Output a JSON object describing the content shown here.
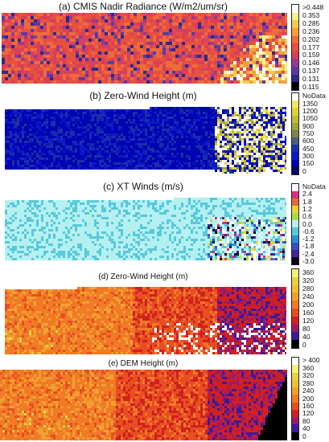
{
  "chart_data": [
    {
      "type": "heatmap",
      "title": "(a) CMIS Nadir Radiance (W/m2/um/sr)",
      "legend": ">0.448 0.353 0.285 0.236 0.202 0.177 0.159 0.146 0.137 0.131 0.115",
      "colorbar": [
        ">0.448",
        "0.353",
        "0.285",
        "0.236",
        "0.202",
        "0.177",
        "0.159",
        "0.146",
        "0.137",
        "0.131",
        "0.115"
      ],
      "colors": [
        "#ffffff",
        "#f5f08a",
        "#f3c850",
        "#f2a03c",
        "#ee6b3a",
        "#e8503e",
        "#d8405a",
        "#9a3a8c",
        "#5a3aa8",
        "#2d2a8a",
        "#000000"
      ],
      "legend_placement": "right"
    },
    {
      "type": "heatmap",
      "title": "(b) Zero-Wind Height (m)",
      "legend": "NoData 1350 1200 1050 900 750 600 450 300 150 0",
      "colorbar": [
        "NoData",
        "1350",
        "1200",
        "1050",
        "900",
        "750",
        "600",
        "450",
        "300",
        "150",
        "0"
      ],
      "colors": [
        "#ffffff",
        "#f3e46a",
        "#ddd23c",
        "#c3b93a",
        "#9fa040",
        "#7c8448",
        "#4a5f80",
        "#1d2fa8",
        "#0a18c8",
        "#0004b0",
        "#000060"
      ],
      "legend_placement": "right"
    },
    {
      "type": "heatmap",
      "title": "(c) XT Winds (m/s)",
      "legend": "NoData 2.4 1.8 1.2 0.6 0.0 -0.6 -1.2 -1.8 -2.4 -3.0",
      "colorbar": [
        "NoData",
        "2.4",
        "1.8",
        "1.2",
        "0.6",
        "0.0",
        "-0.6",
        "-1.2",
        "-1.8",
        "-2.4",
        "-3.0"
      ],
      "colors": [
        "#ffffff",
        "#d8307a",
        "#e36a3a",
        "#ecd03a",
        "#a8dc48",
        "#b4f0f0",
        "#58c8dc",
        "#2890d8",
        "#3a50c0",
        "#46209a",
        "#100020"
      ],
      "legend_placement": "right"
    },
    {
      "type": "heatmap",
      "title": "(d) Zero-Wind Height (m)",
      "legend": "360 320 280 240 200 160 120 80 40 0",
      "colorbar": [
        "360",
        "320",
        "280",
        "240",
        "200",
        "160",
        "120",
        "80",
        "40",
        "0"
      ],
      "colors": [
        "#f5f07a",
        "#e8d048",
        "#eec038",
        "#f0a030",
        "#f07a26",
        "#e84e22",
        "#d02020",
        "#9a1a6a",
        "#3a1a9a",
        "#000000"
      ],
      "legend_placement": "right"
    },
    {
      "type": "heatmap",
      "title": "(e) DEM Height (m)",
      "legend": "> 400 360 320 280 240 200 160 120 80 40 0",
      "colorbar": [
        "> 400",
        "360",
        "320",
        "280",
        "240",
        "200",
        "160",
        "120",
        "80",
        "40",
        "0"
      ],
      "colors": [
        "#ffffff",
        "#f5f07a",
        "#e8d048",
        "#eec038",
        "#f0a030",
        "#f07a26",
        "#e84e22",
        "#d02020",
        "#9a1a6a",
        "#3a1a9a",
        "#000000"
      ],
      "legend_placement": "right"
    }
  ]
}
